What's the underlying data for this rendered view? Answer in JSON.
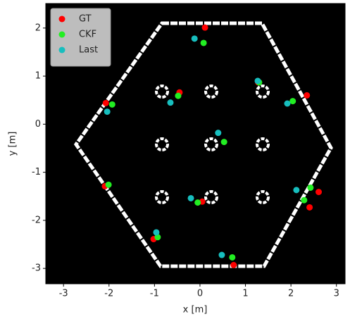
{
  "chart_data": {
    "type": "scatter",
    "xlabel": "x [m]",
    "ylabel": "y [m]",
    "xlim": [
      -3.39,
      3.19
    ],
    "ylim": [
      -3.32,
      2.51
    ],
    "xticks": [
      -3,
      -2,
      -1,
      0,
      1,
      2,
      3
    ],
    "yticks": [
      -3,
      -2,
      -1,
      0,
      1,
      2
    ],
    "legend": "upper left",
    "series": [
      {
        "name": "GT",
        "color": "#ff0000",
        "x": [
          0.11,
          -0.45,
          1.28,
          2.35,
          -2.07,
          -2.09,
          0.05,
          2.61,
          2.41,
          -1.02,
          0.74
        ],
        "y": [
          2.01,
          0.66,
          0.87,
          0.6,
          0.44,
          -1.29,
          -1.61,
          -1.41,
          -1.73,
          -2.39,
          -2.93
        ]
      },
      {
        "name": "CKF",
        "color": "#22ee22",
        "x": [
          0.08,
          -0.48,
          1.3,
          2.04,
          -1.93,
          -2.01,
          0.53,
          -0.05,
          2.43,
          2.29,
          -0.93,
          0.71
        ],
        "y": [
          1.69,
          0.59,
          0.87,
          0.48,
          0.41,
          -1.26,
          -0.37,
          -1.63,
          -1.32,
          -1.58,
          -2.35,
          -2.77
        ]
      },
      {
        "name": "Last",
        "color": "#17bebe",
        "x": [
          -0.12,
          -0.65,
          1.27,
          1.92,
          -2.04,
          0.4,
          -0.2,
          2.12,
          -0.96,
          0.48
        ],
        "y": [
          1.78,
          0.45,
          0.9,
          0.43,
          0.26,
          -0.18,
          -1.54,
          -1.37,
          -2.25,
          -2.72
        ]
      }
    ]
  }
}
